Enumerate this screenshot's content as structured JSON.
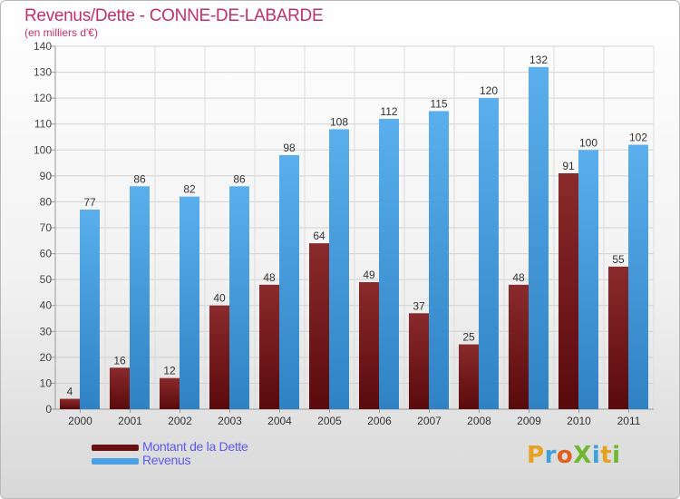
{
  "title": "Revenus/Dette - CONNE-DE-LABARDE",
  "subtitle": "(en milliers d'€)",
  "brand": {
    "text": "ProXiti",
    "letter_colors": [
      "#e8a020",
      "#3da0d8",
      "#e06020",
      "#70b830",
      "#3da0d8",
      "#e8a020",
      "#70b830"
    ]
  },
  "colors": {
    "dette": "#7a1f22",
    "revenus": "#4a9fe0",
    "title": "#c0306a",
    "legend_text": "#5b5bea"
  },
  "legend": [
    {
      "label": "Montant de la Dette",
      "color": "#6a0f12"
    },
    {
      "label": "Revenus",
      "color": "#4aa2e4"
    }
  ],
  "chart_data": {
    "type": "bar",
    "categories": [
      "2000",
      "2001",
      "2002",
      "2003",
      "2004",
      "2005",
      "2006",
      "2007",
      "2008",
      "2009",
      "2010",
      "2011"
    ],
    "series": [
      {
        "name": "Montant de la Dette",
        "values": [
          4,
          16,
          12,
          40,
          48,
          64,
          49,
          37,
          25,
          48,
          91,
          55
        ]
      },
      {
        "name": "Revenus",
        "values": [
          77,
          86,
          82,
          86,
          98,
          108,
          112,
          115,
          120,
          132,
          100,
          102
        ]
      }
    ],
    "title": "Revenus/Dette - CONNE-DE-LABARDE",
    "ylim": [
      0,
      140
    ],
    "yticks": [
      0,
      10,
      20,
      30,
      40,
      50,
      60,
      70,
      80,
      90,
      100,
      110,
      120,
      130,
      140
    ],
    "grid": true,
    "legend_position": "bottom-left"
  }
}
